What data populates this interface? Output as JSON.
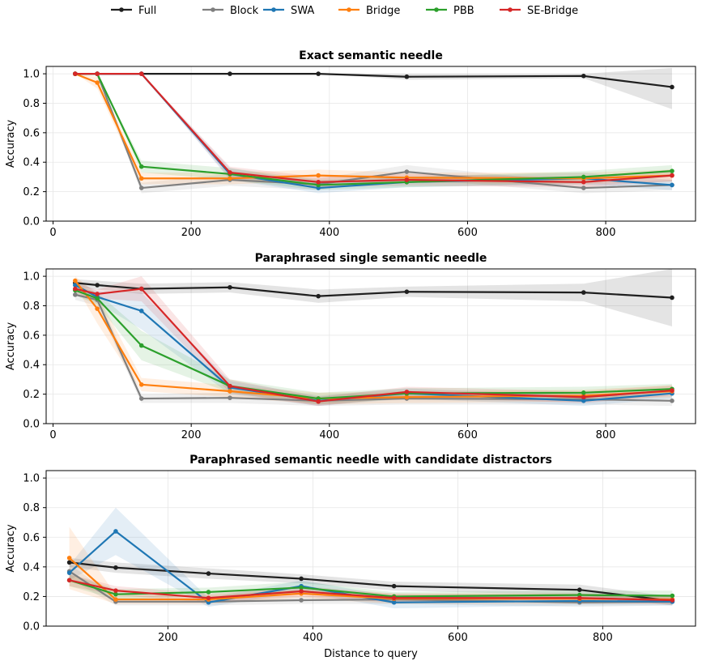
{
  "legend": {
    "placement": "top-center",
    "entries": [
      {
        "name": "Full",
        "color": "#1f1f1f"
      },
      {
        "name": "Block",
        "color": "#7f7f7f"
      },
      {
        "name": "SWA",
        "color": "#1f77b4"
      },
      {
        "name": "Bridge",
        "color": "#ff7f0e"
      },
      {
        "name": "PBB",
        "color": "#2ca02c"
      },
      {
        "name": "SE-Bridge",
        "color": "#d62728"
      }
    ]
  },
  "chart_data": [
    {
      "type": "line",
      "title": "Exact semantic needle",
      "xlabel": "",
      "ylabel": "Accuracy",
      "xlim": [
        -10,
        930
      ],
      "ylim": [
        0,
        1.05
      ],
      "xticks": [
        0,
        200,
        400,
        600,
        800
      ],
      "yticks": [
        0.0,
        0.2,
        0.4,
        0.6,
        0.8,
        1.0
      ],
      "grid": true,
      "x": [
        32,
        64,
        128,
        256,
        384,
        512,
        768,
        896
      ],
      "series": [
        {
          "name": "Full",
          "values": [
            1.0,
            1.0,
            1.0,
            1.0,
            1.0,
            0.98,
            0.985,
            0.91
          ],
          "band": [
            [
              1.0,
              1.0
            ],
            [
              1.0,
              1.0
            ],
            [
              1.0,
              1.0
            ],
            [
              1.0,
              1.0
            ],
            [
              1.0,
              1.0
            ],
            [
              0.96,
              1.0
            ],
            [
              0.97,
              1.0
            ],
            [
              0.76,
              1.04
            ]
          ]
        },
        {
          "name": "Block",
          "values": [
            1.0,
            1.0,
            0.225,
            0.28,
            0.25,
            0.335,
            0.225,
            0.245
          ],
          "band": [
            [
              1.0,
              1.0
            ],
            [
              1.0,
              1.0
            ],
            [
              0.19,
              0.26
            ],
            [
              0.24,
              0.32
            ],
            [
              0.21,
              0.29
            ],
            [
              0.29,
              0.38
            ],
            [
              0.19,
              0.26
            ],
            [
              0.21,
              0.28
            ]
          ]
        },
        {
          "name": "SWA",
          "values": [
            1.0,
            1.0,
            1.0,
            0.32,
            0.225,
            0.265,
            0.29,
            0.245
          ],
          "band": [
            [
              1.0,
              1.0
            ],
            [
              1.0,
              1.0
            ],
            [
              1.0,
              1.0
            ],
            [
              0.28,
              0.36
            ],
            [
              0.19,
              0.26
            ],
            [
              0.23,
              0.3
            ],
            [
              0.25,
              0.33
            ],
            [
              0.21,
              0.28
            ]
          ]
        },
        {
          "name": "Bridge",
          "values": [
            1.0,
            0.94,
            0.29,
            0.29,
            0.31,
            0.295,
            0.29,
            0.31
          ],
          "band": [
            [
              1.0,
              1.0
            ],
            [
              0.9,
              0.98
            ],
            [
              0.25,
              0.33
            ],
            [
              0.25,
              0.33
            ],
            [
              0.27,
              0.35
            ],
            [
              0.26,
              0.33
            ],
            [
              0.25,
              0.33
            ],
            [
              0.27,
              0.35
            ]
          ]
        },
        {
          "name": "PBB",
          "values": [
            1.0,
            1.0,
            0.37,
            0.32,
            0.245,
            0.265,
            0.3,
            0.34
          ],
          "band": [
            [
              1.0,
              1.0
            ],
            [
              1.0,
              1.0
            ],
            [
              0.33,
              0.41
            ],
            [
              0.28,
              0.36
            ],
            [
              0.21,
              0.28
            ],
            [
              0.23,
              0.3
            ],
            [
              0.26,
              0.34
            ],
            [
              0.3,
              0.38
            ]
          ]
        },
        {
          "name": "SE-Bridge",
          "values": [
            1.0,
            1.0,
            1.0,
            0.33,
            0.265,
            0.28,
            0.265,
            0.31
          ],
          "band": [
            [
              1.0,
              1.0
            ],
            [
              1.0,
              1.0
            ],
            [
              1.0,
              1.0
            ],
            [
              0.29,
              0.37
            ],
            [
              0.23,
              0.3
            ],
            [
              0.24,
              0.32
            ],
            [
              0.23,
              0.3
            ],
            [
              0.27,
              0.35
            ]
          ]
        }
      ]
    },
    {
      "type": "line",
      "title": "Paraphrased single semantic needle",
      "xlabel": "",
      "ylabel": "Accuracy",
      "xlim": [
        -10,
        930
      ],
      "ylim": [
        0,
        1.05
      ],
      "xticks": [
        0,
        200,
        400,
        600,
        800
      ],
      "yticks": [
        0.0,
        0.2,
        0.4,
        0.6,
        0.8,
        1.0
      ],
      "grid": true,
      "x": [
        32,
        64,
        128,
        256,
        384,
        512,
        768,
        896
      ],
      "series": [
        {
          "name": "Full",
          "values": [
            0.955,
            0.94,
            0.915,
            0.925,
            0.865,
            0.895,
            0.89,
            0.855
          ],
          "band": [
            [
              0.93,
              0.98
            ],
            [
              0.91,
              0.97
            ],
            [
              0.88,
              0.95
            ],
            [
              0.89,
              0.96
            ],
            [
              0.82,
              0.91
            ],
            [
              0.86,
              0.93
            ],
            [
              0.83,
              0.95
            ],
            [
              0.66,
              1.05
            ]
          ]
        },
        {
          "name": "Block",
          "values": [
            0.875,
            0.84,
            0.17,
            0.175,
            0.155,
            0.17,
            0.165,
            0.155
          ],
          "band": [
            [
              0.84,
              0.91
            ],
            [
              0.8,
              0.88
            ],
            [
              0.14,
              0.2
            ],
            [
              0.14,
              0.21
            ],
            [
              0.12,
              0.19
            ],
            [
              0.13,
              0.21
            ],
            [
              0.13,
              0.2
            ],
            [
              0.12,
              0.19
            ]
          ]
        },
        {
          "name": "SWA",
          "values": [
            0.94,
            0.86,
            0.765,
            0.245,
            0.155,
            0.205,
            0.155,
            0.205
          ],
          "band": [
            [
              0.91,
              0.97
            ],
            [
              0.82,
              0.9
            ],
            [
              0.64,
              0.89
            ],
            [
              0.2,
              0.29
            ],
            [
              0.12,
              0.19
            ],
            [
              0.17,
              0.24
            ],
            [
              0.12,
              0.19
            ],
            [
              0.17,
              0.24
            ]
          ]
        },
        {
          "name": "Bridge",
          "values": [
            0.97,
            0.78,
            0.265,
            0.22,
            0.17,
            0.18,
            0.19,
            0.22
          ],
          "band": [
            [
              0.94,
              1.0
            ],
            [
              0.68,
              0.88
            ],
            [
              0.22,
              0.31
            ],
            [
              0.18,
              0.26
            ],
            [
              0.13,
              0.21
            ],
            [
              0.14,
              0.22
            ],
            [
              0.15,
              0.23
            ],
            [
              0.18,
              0.26
            ]
          ]
        },
        {
          "name": "PBB",
          "values": [
            0.905,
            0.85,
            0.53,
            0.255,
            0.17,
            0.205,
            0.21,
            0.235
          ],
          "band": [
            [
              0.87,
              0.94
            ],
            [
              0.81,
              0.89
            ],
            [
              0.43,
              0.63
            ],
            [
              0.21,
              0.3
            ],
            [
              0.13,
              0.21
            ],
            [
              0.17,
              0.24
            ],
            [
              0.17,
              0.25
            ],
            [
              0.2,
              0.27
            ]
          ]
        },
        {
          "name": "SE-Bridge",
          "values": [
            0.915,
            0.88,
            0.915,
            0.255,
            0.15,
            0.215,
            0.18,
            0.225
          ],
          "band": [
            [
              0.88,
              0.95
            ],
            [
              0.85,
              0.91
            ],
            [
              0.83,
              1.0
            ],
            [
              0.21,
              0.3
            ],
            [
              0.12,
              0.18
            ],
            [
              0.18,
              0.25
            ],
            [
              0.14,
              0.22
            ],
            [
              0.19,
              0.26
            ]
          ]
        }
      ]
    },
    {
      "type": "line",
      "title": "Paraphrased semantic needle with candidate distractors",
      "xlabel": "Distance to query",
      "ylabel": "Accuracy",
      "xlim": [
        32,
        928
      ],
      "ylim": [
        0,
        1.05
      ],
      "xticks": [
        200,
        400,
        600,
        800
      ],
      "yticks": [
        0.0,
        0.2,
        0.4,
        0.6,
        0.8,
        1.0
      ],
      "grid": true,
      "x": [
        64,
        128,
        256,
        384,
        512,
        768,
        896
      ],
      "series": [
        {
          "name": "Full",
          "values": [
            0.43,
            0.395,
            0.355,
            0.32,
            0.27,
            0.245,
            0.17
          ],
          "band": [
            [
              0.4,
              0.46
            ],
            [
              0.36,
              0.43
            ],
            [
              0.32,
              0.39
            ],
            [
              0.29,
              0.35
            ],
            [
              0.24,
              0.3
            ],
            [
              0.21,
              0.28
            ],
            [
              0.14,
              0.2
            ]
          ]
        },
        {
          "name": "Block",
          "values": [
            0.37,
            0.165,
            0.165,
            0.175,
            0.18,
            0.16,
            0.165
          ],
          "band": [
            [
              0.32,
              0.42
            ],
            [
              0.14,
              0.19
            ],
            [
              0.14,
              0.19
            ],
            [
              0.15,
              0.2
            ],
            [
              0.15,
              0.21
            ],
            [
              0.13,
              0.19
            ],
            [
              0.14,
              0.19
            ]
          ]
        },
        {
          "name": "SWA",
          "values": [
            0.36,
            0.64,
            0.16,
            0.27,
            0.16,
            0.17,
            0.165
          ],
          "band": [
            [
              0.31,
              0.41
            ],
            [
              0.48,
              0.8
            ],
            [
              0.13,
              0.19
            ],
            [
              0.23,
              0.31
            ],
            [
              0.12,
              0.2
            ],
            [
              0.14,
              0.2
            ],
            [
              0.14,
              0.19
            ]
          ]
        },
        {
          "name": "Bridge",
          "values": [
            0.46,
            0.18,
            0.18,
            0.22,
            0.185,
            0.185,
            0.18
          ],
          "band": [
            [
              0.25,
              0.67
            ],
            [
              0.15,
              0.21
            ],
            [
              0.15,
              0.21
            ],
            [
              0.19,
              0.25
            ],
            [
              0.15,
              0.22
            ],
            [
              0.15,
              0.22
            ],
            [
              0.15,
              0.21
            ]
          ]
        },
        {
          "name": "PBB",
          "values": [
            0.31,
            0.215,
            0.23,
            0.26,
            0.2,
            0.21,
            0.205
          ],
          "band": [
            [
              0.27,
              0.35
            ],
            [
              0.18,
              0.25
            ],
            [
              0.2,
              0.26
            ],
            [
              0.22,
              0.3
            ],
            [
              0.17,
              0.23
            ],
            [
              0.18,
              0.24
            ],
            [
              0.17,
              0.24
            ]
          ]
        },
        {
          "name": "SE-Bridge",
          "values": [
            0.31,
            0.24,
            0.19,
            0.235,
            0.19,
            0.19,
            0.175
          ],
          "band": [
            [
              0.27,
              0.35
            ],
            [
              0.21,
              0.27
            ],
            [
              0.16,
              0.22
            ],
            [
              0.2,
              0.27
            ],
            [
              0.16,
              0.22
            ],
            [
              0.16,
              0.22
            ],
            [
              0.15,
              0.2
            ]
          ]
        }
      ]
    }
  ]
}
